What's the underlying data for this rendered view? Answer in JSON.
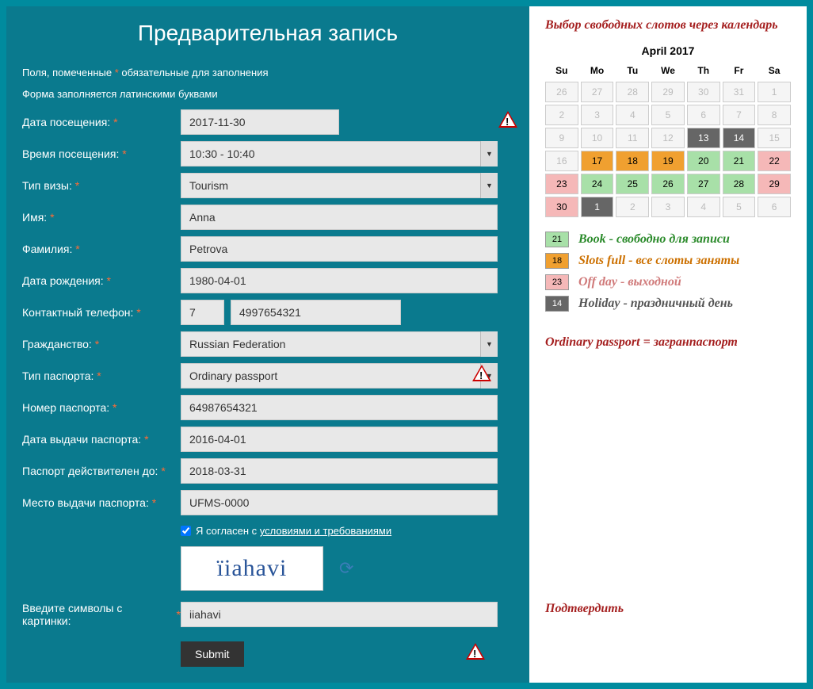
{
  "title": "Предварительная запись",
  "note_prefix": "Поля, помеченные ",
  "note_suffix": " обязательные для заполнения",
  "note2": "Форма заполняется латинскими буквами",
  "labels": {
    "date": "Дата посещения:",
    "time": "Время посещения:",
    "visa": "Тип визы:",
    "fname": "Имя:",
    "lname": "Фамилия:",
    "dob": "Дата рождения:",
    "phone": "Контактный телефон:",
    "citizen": "Гражданство:",
    "passtype": "Тип паспорта:",
    "passnum": "Номер паспорта:",
    "passissue": "Дата выдачи паспорта:",
    "passvalid": "Паспорт действителен до:",
    "passplace": "Место выдачи паспорта:",
    "captcha": "Введите символы с картинки:"
  },
  "values": {
    "date": "2017-11-30",
    "time": "10:30 - 10:40",
    "visa": "Tourism",
    "fname": "Anna",
    "lname": "Petrova",
    "dob": "1980-04-01",
    "phone_code": "7",
    "phone": "4997654321",
    "citizen": "Russian Federation",
    "passtype": "Ordinary passport",
    "passnum": "64987654321",
    "passissue": "2016-04-01",
    "passvalid": "2018-03-31",
    "passplace": "UFMS-0000",
    "captcha": "iiahavi"
  },
  "captcha_text": "ïiahavi",
  "consent_prefix": "Я согласен с ",
  "consent_link": "условиями и требованиями",
  "submit": "Submit",
  "annot": {
    "header": "Выбор свободных слотов через календарь",
    "passport": "Ordinary passport = загранпаспорт",
    "submit": "Подтвердить"
  },
  "calendar": {
    "title": "April 2017",
    "headers": [
      "Su",
      "Mo",
      "Tu",
      "We",
      "Th",
      "Fr",
      "Sa"
    ],
    "cells": [
      {
        "n": "26",
        "c": "dim"
      },
      {
        "n": "27",
        "c": "dim"
      },
      {
        "n": "28",
        "c": "dim"
      },
      {
        "n": "29",
        "c": "dim"
      },
      {
        "n": "30",
        "c": "dim"
      },
      {
        "n": "31",
        "c": "dim"
      },
      {
        "n": "1",
        "c": "dim"
      },
      {
        "n": "2",
        "c": "dim"
      },
      {
        "n": "3",
        "c": "dim"
      },
      {
        "n": "4",
        "c": "dim"
      },
      {
        "n": "5",
        "c": "dim"
      },
      {
        "n": "6",
        "c": "dim"
      },
      {
        "n": "7",
        "c": "dim"
      },
      {
        "n": "8",
        "c": "dim"
      },
      {
        "n": "9",
        "c": "dim"
      },
      {
        "n": "10",
        "c": "dim"
      },
      {
        "n": "11",
        "c": "dim"
      },
      {
        "n": "12",
        "c": "dim"
      },
      {
        "n": "13",
        "c": "hol"
      },
      {
        "n": "14",
        "c": "hol"
      },
      {
        "n": "15",
        "c": "dim"
      },
      {
        "n": "16",
        "c": "dim"
      },
      {
        "n": "17",
        "c": "full"
      },
      {
        "n": "18",
        "c": "full"
      },
      {
        "n": "19",
        "c": "full"
      },
      {
        "n": "20",
        "c": "book"
      },
      {
        "n": "21",
        "c": "book"
      },
      {
        "n": "22",
        "c": "off"
      },
      {
        "n": "23",
        "c": "off"
      },
      {
        "n": "24",
        "c": "book"
      },
      {
        "n": "25",
        "c": "book"
      },
      {
        "n": "26",
        "c": "book"
      },
      {
        "n": "27",
        "c": "book"
      },
      {
        "n": "28",
        "c": "book"
      },
      {
        "n": "29",
        "c": "off"
      },
      {
        "n": "30",
        "c": "off"
      },
      {
        "n": "1",
        "c": "hol"
      },
      {
        "n": "2",
        "c": "dim"
      },
      {
        "n": "3",
        "c": "dim"
      },
      {
        "n": "4",
        "c": "dim"
      },
      {
        "n": "5",
        "c": "dim"
      },
      {
        "n": "6",
        "c": "dim"
      }
    ]
  },
  "legend": {
    "book": {
      "num": "21",
      "text": "Book - свободно для записи"
    },
    "full": {
      "num": "18",
      "text": "Slots full - все слоты заняты"
    },
    "off": {
      "num": "23",
      "text": "Off day - выходной"
    },
    "hol": {
      "num": "14",
      "text": "Holiday - праздничный день"
    }
  }
}
